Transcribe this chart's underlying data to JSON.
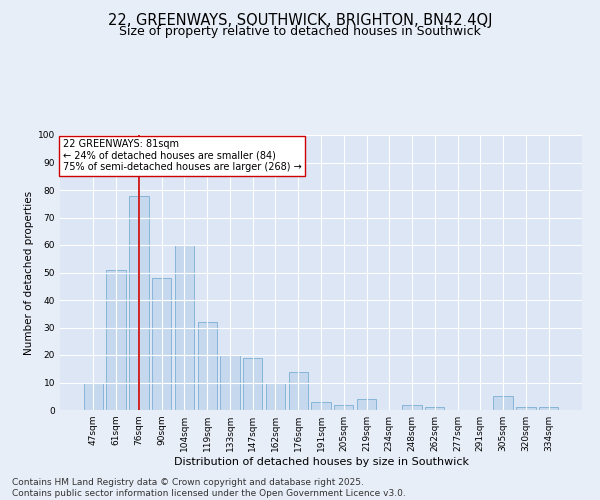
{
  "title": "22, GREENWAYS, SOUTHWICK, BRIGHTON, BN42 4QJ",
  "subtitle": "Size of property relative to detached houses in Southwick",
  "xlabel": "Distribution of detached houses by size in Southwick",
  "ylabel": "Number of detached properties",
  "categories": [
    "47sqm",
    "61sqm",
    "76sqm",
    "90sqm",
    "104sqm",
    "119sqm",
    "133sqm",
    "147sqm",
    "162sqm",
    "176sqm",
    "191sqm",
    "205sqm",
    "219sqm",
    "234sqm",
    "248sqm",
    "262sqm",
    "277sqm",
    "291sqm",
    "305sqm",
    "320sqm",
    "334sqm"
  ],
  "values": [
    10,
    51,
    78,
    48,
    60,
    32,
    20,
    19,
    10,
    14,
    3,
    2,
    4,
    0,
    2,
    1,
    0,
    0,
    5,
    1,
    1
  ],
  "bar_color": "#c5d8ee",
  "bar_edge_color": "#7aafd4",
  "highlight_index": 2,
  "highlight_line_color": "#cc0000",
  "ylim": [
    0,
    100
  ],
  "yticks": [
    0,
    10,
    20,
    30,
    40,
    50,
    60,
    70,
    80,
    90,
    100
  ],
  "annotation_text": "22 GREENWAYS: 81sqm\n← 24% of detached houses are smaller (84)\n75% of semi-detached houses are larger (268) →",
  "background_color": "#e8eef8",
  "plot_bg_color": "#dce6f5",
  "footer_line1": "Contains HM Land Registry data © Crown copyright and database right 2025.",
  "footer_line2": "Contains public sector information licensed under the Open Government Licence v3.0.",
  "title_fontsize": 10.5,
  "subtitle_fontsize": 9,
  "xlabel_fontsize": 8,
  "ylabel_fontsize": 7.5,
  "tick_fontsize": 6.5,
  "annotation_fontsize": 7,
  "footer_fontsize": 6.5
}
